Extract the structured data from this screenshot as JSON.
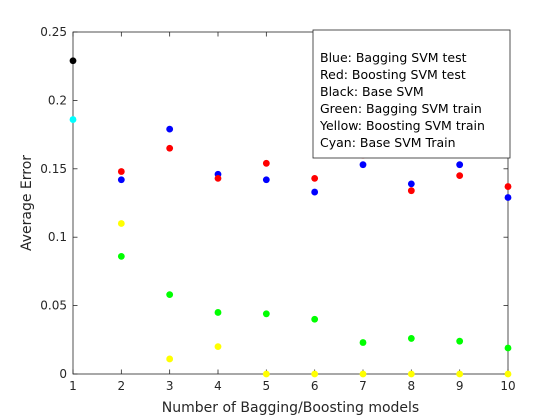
{
  "chart_data": {
    "type": "scatter",
    "title": "",
    "xlabel": "Number of Bagging/Boosting models",
    "ylabel": "Average Error",
    "xlim": [
      1,
      10
    ],
    "ylim": [
      0,
      0.25
    ],
    "xticks": [
      1,
      2,
      3,
      4,
      5,
      6,
      7,
      8,
      9,
      10
    ],
    "xtick_labels": [
      "1",
      "2",
      "3",
      "4",
      "5",
      "6",
      "7",
      "8",
      "9",
      "10"
    ],
    "yticks": [
      0,
      0.05,
      0.1,
      0.15,
      0.2,
      0.25
    ],
    "ytick_labels": [
      "0",
      "0.05",
      "0.1",
      "0.15",
      "0.2",
      "0.25"
    ],
    "grid": false,
    "legend_position": "top-right",
    "legend_lines": [
      "Blue: Bagging SVM test",
      "Red: Boosting SVM test",
      "Black: Base SVM",
      "Green: Bagging SVM train",
      "Yellow: Boosting SVM train",
      "Cyan: Base SVM Train"
    ],
    "series": [
      {
        "color": "#0000ff",
        "x": [
          2,
          3,
          4,
          5,
          6,
          7,
          8,
          9,
          10
        ],
        "y": [
          0.142,
          0.179,
          0.146,
          0.142,
          0.133,
          0.153,
          0.139,
          0.153,
          0.129
        ]
      },
      {
        "color": "#ff0000",
        "x": [
          2,
          3,
          4,
          5,
          6,
          7,
          8,
          9,
          10
        ],
        "y": [
          0.148,
          0.165,
          0.143,
          0.154,
          0.143,
          0.16,
          0.134,
          0.145,
          0.137
        ]
      },
      {
        "color": "#000000",
        "x": [
          1
        ],
        "y": [
          0.229
        ]
      },
      {
        "color": "#00ff00",
        "x": [
          2,
          3,
          4,
          5,
          6,
          7,
          8,
          9,
          10
        ],
        "y": [
          0.086,
          0.058,
          0.045,
          0.044,
          0.04,
          0.023,
          0.026,
          0.024,
          0.019
        ]
      },
      {
        "color": "#ffff00",
        "x": [
          2,
          3,
          4,
          5,
          6,
          7,
          8,
          9,
          10
        ],
        "y": [
          0.11,
          0.011,
          0.02,
          0.0,
          0.0,
          0.0,
          0.0,
          0.0,
          0.0
        ]
      },
      {
        "color": "#00ffff",
        "x": [
          1
        ],
        "y": [
          0.186
        ]
      }
    ]
  }
}
